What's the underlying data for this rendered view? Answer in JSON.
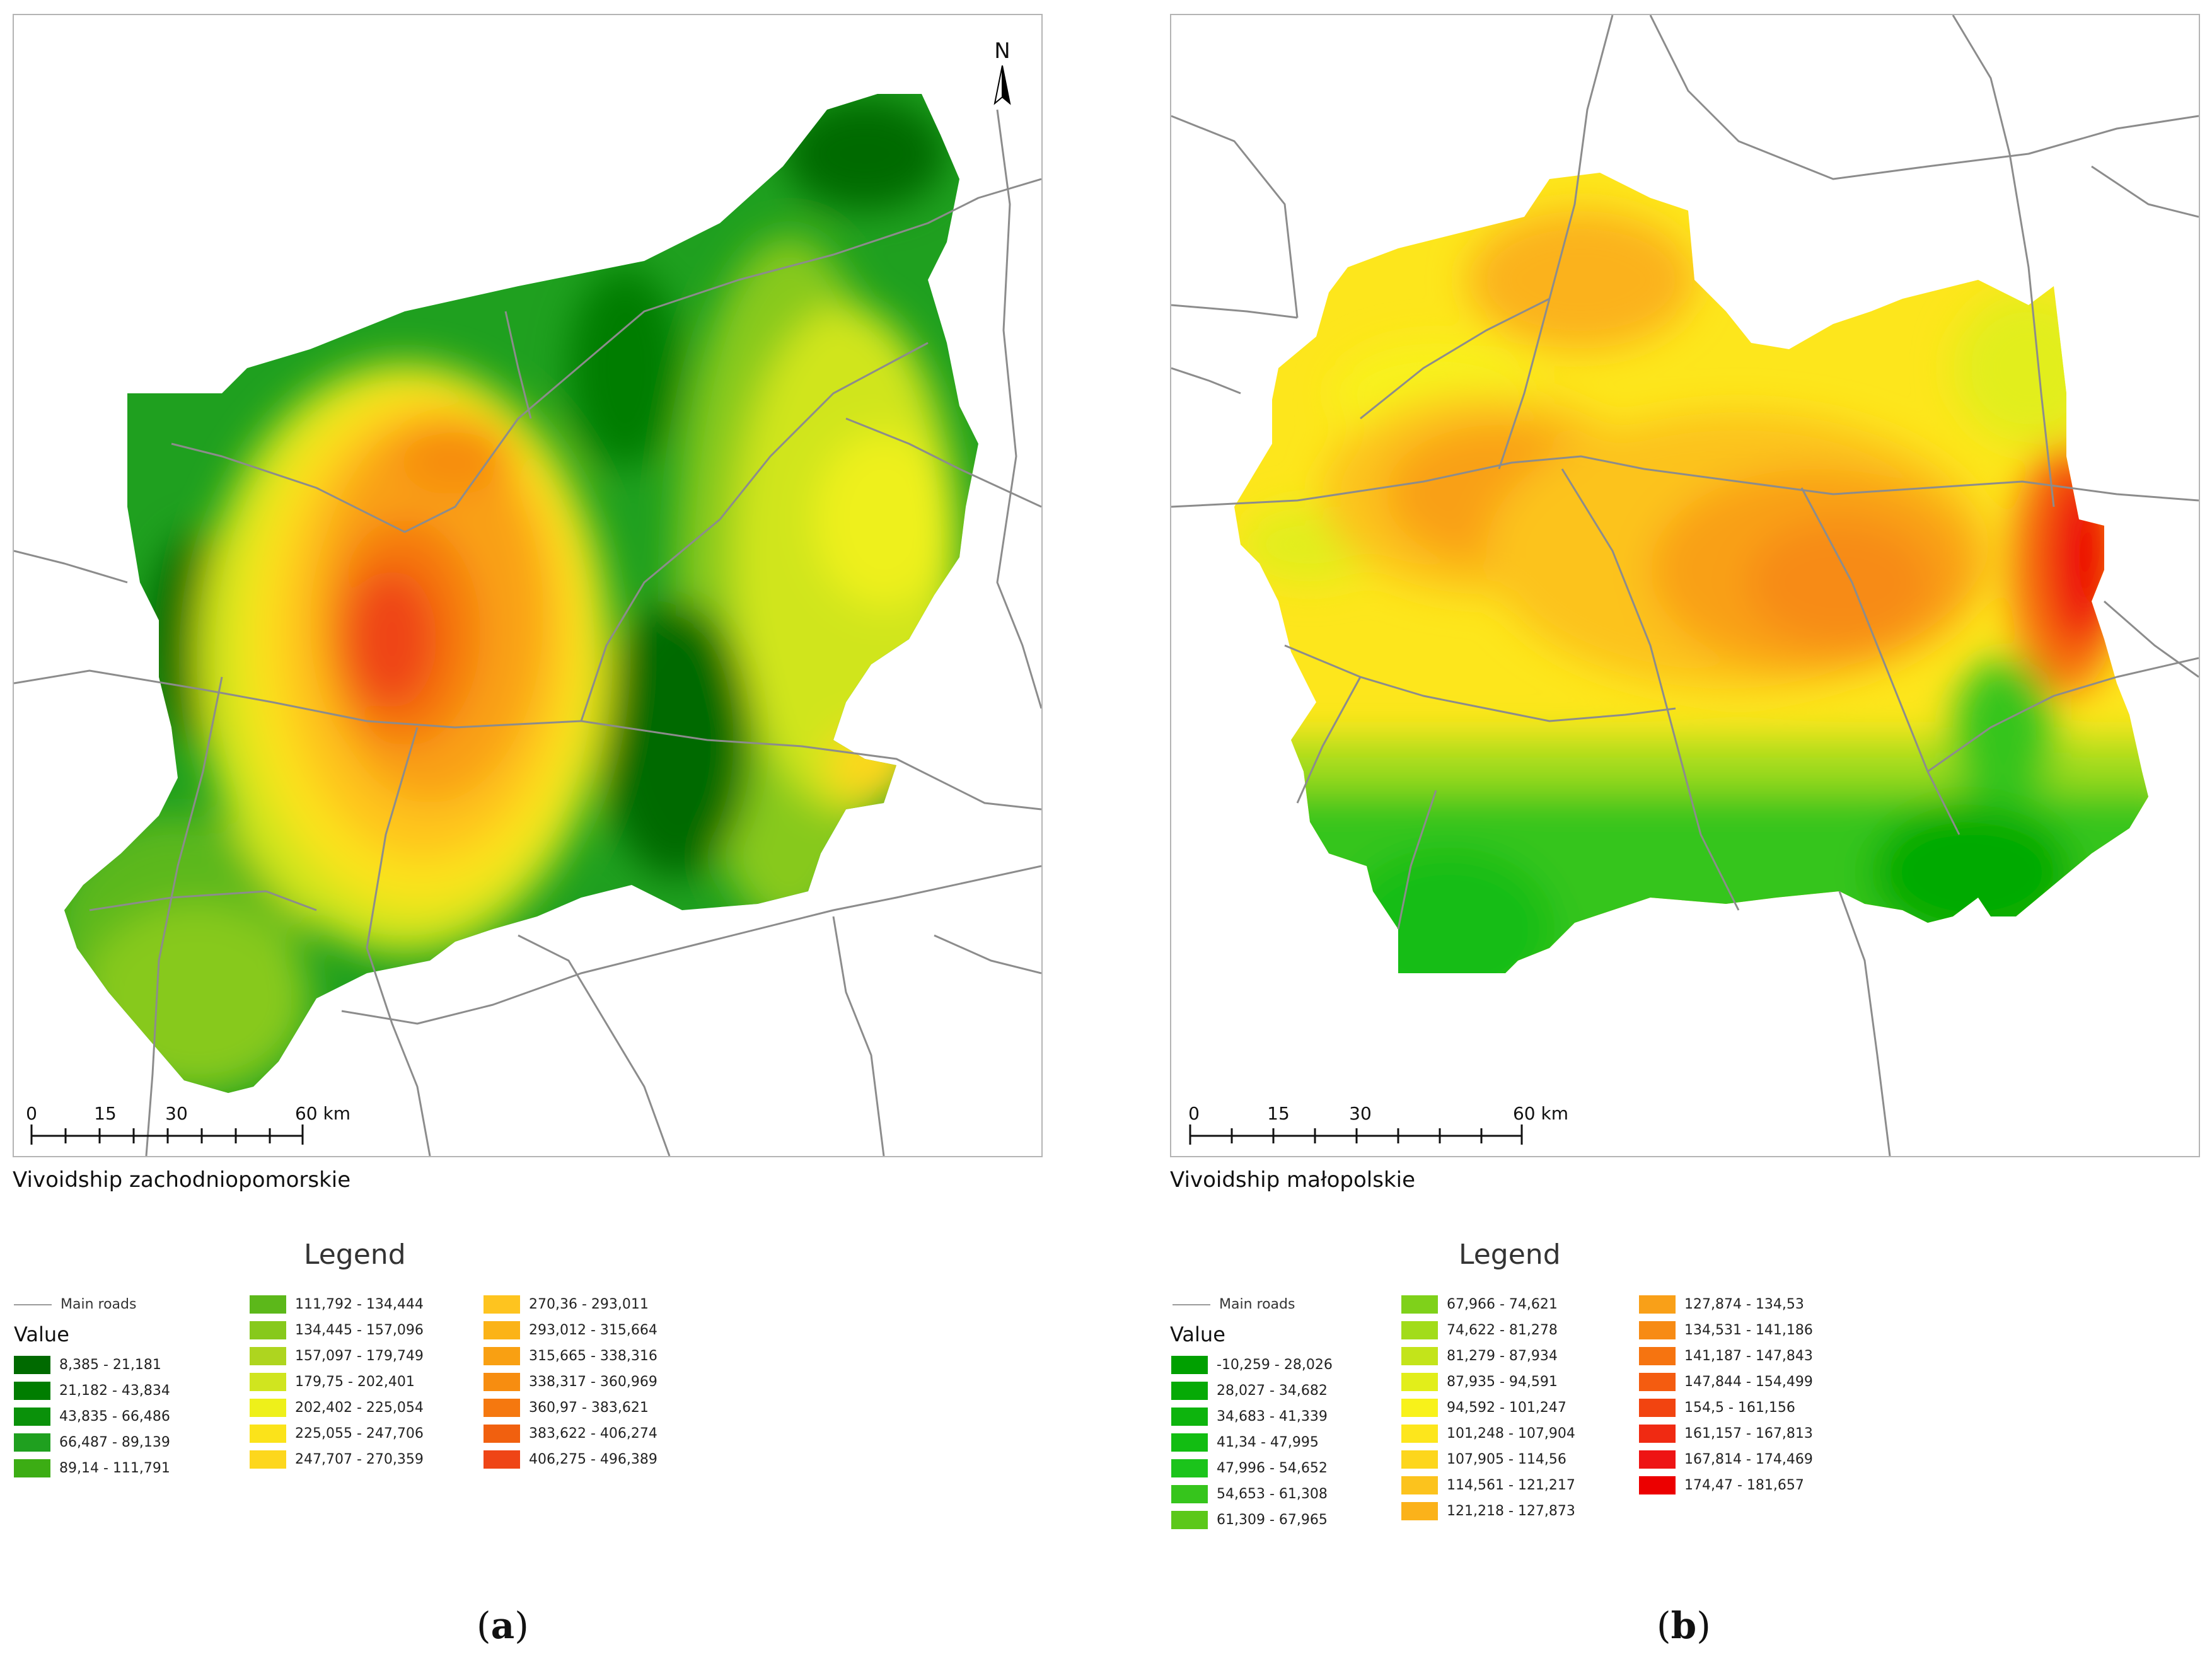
{
  "panels": [
    {
      "id": "a",
      "title": "Vivoidship zachodniopomorskie",
      "label_letter": "a",
      "legend_title": "Legend",
      "roads_label": "Main roads",
      "value_label": "Value",
      "north_label": "N",
      "scale": {
        "ticks": [
          "0",
          "15",
          "30",
          "60 km"
        ]
      },
      "legend_classes": [
        {
          "range": "8,385 - 21,181",
          "color": "#006a00"
        },
        {
          "range": "21,182 - 43,834",
          "color": "#007d00"
        },
        {
          "range": "43,835 - 66,486",
          "color": "#0a910a"
        },
        {
          "range": "66,487 - 89,139",
          "color": "#1fa01f"
        },
        {
          "range": "89,14 - 111,791",
          "color": "#3cad14"
        },
        {
          "range": "111,792 - 134,444",
          "color": "#5cb81a"
        },
        {
          "range": "134,445 - 157,096",
          "color": "#87c91c"
        },
        {
          "range": "157,097 - 179,749",
          "color": "#aed51f"
        },
        {
          "range": "179,75 - 202,401",
          "color": "#d0e51f"
        },
        {
          "range": "202,402 - 225,054",
          "color": "#eef01a"
        },
        {
          "range": "225,055 - 247,706",
          "color": "#fbe31a"
        },
        {
          "range": "247,707 - 270,359",
          "color": "#fdd71d"
        },
        {
          "range": "270,36 - 293,011",
          "color": "#fec41f"
        },
        {
          "range": "293,012 - 315,664",
          "color": "#fbb317"
        },
        {
          "range": "315,665 - 338,316",
          "color": "#f9a012"
        },
        {
          "range": "338,317 - 360,969",
          "color": "#f78d10"
        },
        {
          "range": "360,97 - 383,621",
          "color": "#f5780f"
        },
        {
          "range": "383,622 - 406,274",
          "color": "#f1600f"
        },
        {
          "range": "406,275 - 496,389",
          "color": "#ef4516"
        }
      ]
    },
    {
      "id": "b",
      "title": "Vivoidship małopolskie",
      "label_letter": "b",
      "legend_title": "Legend",
      "roads_label": "Main roads",
      "value_label": "Value",
      "scale": {
        "ticks": [
          "0",
          "15",
          "30",
          "60 km"
        ]
      },
      "legend_classes": [
        {
          "range": "-10,259 - 28,026",
          "color": "#00a000"
        },
        {
          "range": "28,027 - 34,682",
          "color": "#06aa06"
        },
        {
          "range": "34,683 - 41,339",
          "color": "#0db40d"
        },
        {
          "range": "41,34 - 47,995",
          "color": "#12bd12"
        },
        {
          "range": "47,996 - 54,652",
          "color": "#1bc41b"
        },
        {
          "range": "54,653 - 61,308",
          "color": "#36c51c"
        },
        {
          "range": "61,309 - 67,965",
          "color": "#5cc81a"
        },
        {
          "range": "67,966 - 74,621",
          "color": "#7fd11a"
        },
        {
          "range": "74,622 - 81,278",
          "color": "#a2dc1a"
        },
        {
          "range": "81,279 - 87,934",
          "color": "#c3e41a"
        },
        {
          "range": "87,935 - 94,591",
          "color": "#e2ee1a"
        },
        {
          "range": "94,592 - 101,247",
          "color": "#f8f21a"
        },
        {
          "range": "101,248 - 107,904",
          "color": "#fde61c"
        },
        {
          "range": "107,905 - 114,56",
          "color": "#fdd61c"
        },
        {
          "range": "114,561 - 121,217",
          "color": "#fcc31d"
        },
        {
          "range": "121,218 - 127,873",
          "color": "#fbb21a"
        },
        {
          "range": "127,874 - 134,53",
          "color": "#f9a018"
        },
        {
          "range": "134,531 - 141,186",
          "color": "#f78b14"
        },
        {
          "range": "141,187 - 147,843",
          "color": "#f67410"
        },
        {
          "range": "147,844 - 154,499",
          "color": "#f45c10"
        },
        {
          "range": "154,5 - 161,156",
          "color": "#f24410"
        },
        {
          "range": "161,157 - 167,813",
          "color": "#f02a12"
        },
        {
          "range": "167,814 - 174,469",
          "color": "#ee1414"
        },
        {
          "range": "174,47 - 181,657",
          "color": "#ec0000"
        }
      ]
    }
  ]
}
